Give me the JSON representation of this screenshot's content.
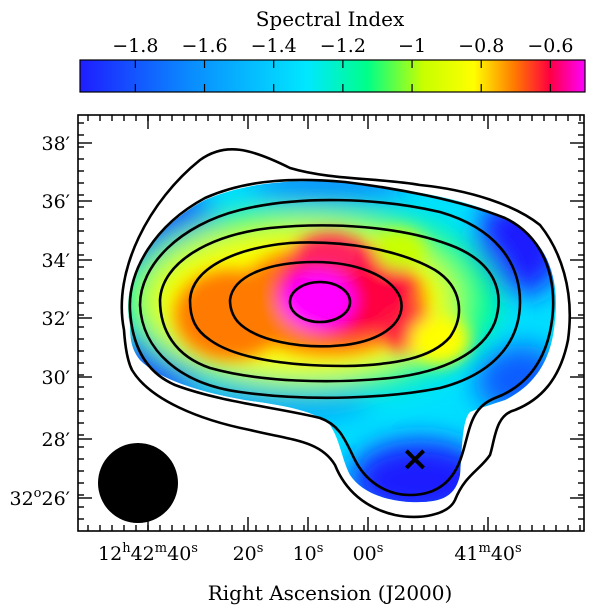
{
  "chart_data": {
    "type": "heatmap",
    "colorbar": {
      "label": "Spectral Index",
      "ticks": [
        "−1.8",
        "−1.6",
        "−1.4",
        "−1.2",
        "−1",
        "−0.8",
        "−0.6"
      ],
      "tick_values": [
        -1.8,
        -1.6,
        -1.4,
        -1.2,
        -1.0,
        -0.8,
        -0.6
      ],
      "range": [
        -1.96,
        -0.5
      ],
      "colors": [
        "#1e1eff",
        "#0a8cff",
        "#00e8ff",
        "#00ff88",
        "#c8ff00",
        "#ffff00",
        "#ff7a00",
        "#ff0040",
        "#ff00ff"
      ]
    },
    "xaxis": {
      "label": "Right Ascension (J2000)",
      "ticks": [
        {
          "h": "12",
          "m": "42",
          "s": "40"
        },
        {
          "h": "",
          "m": "",
          "s": "20"
        },
        {
          "h": "",
          "m": "",
          "s": "10"
        },
        {
          "h": "",
          "m": "",
          "s": "00"
        },
        {
          "h": "",
          "m": "41",
          "s": "40"
        }
      ]
    },
    "yaxis": {
      "label": "",
      "ticks": [
        {
          "deg": "",
          "min": "38′"
        },
        {
          "deg": "",
          "min": "36′"
        },
        {
          "deg": "",
          "min": "34′"
        },
        {
          "deg": "",
          "min": "32′"
        },
        {
          "deg": "",
          "min": "30′"
        },
        {
          "deg": "",
          "min": "28′"
        },
        {
          "deg": "32",
          "min": "26′"
        }
      ]
    },
    "peak_spectral_index": -0.6,
    "contour_levels": 7,
    "marker": "×",
    "beam": "filled circle (lower-left)"
  }
}
